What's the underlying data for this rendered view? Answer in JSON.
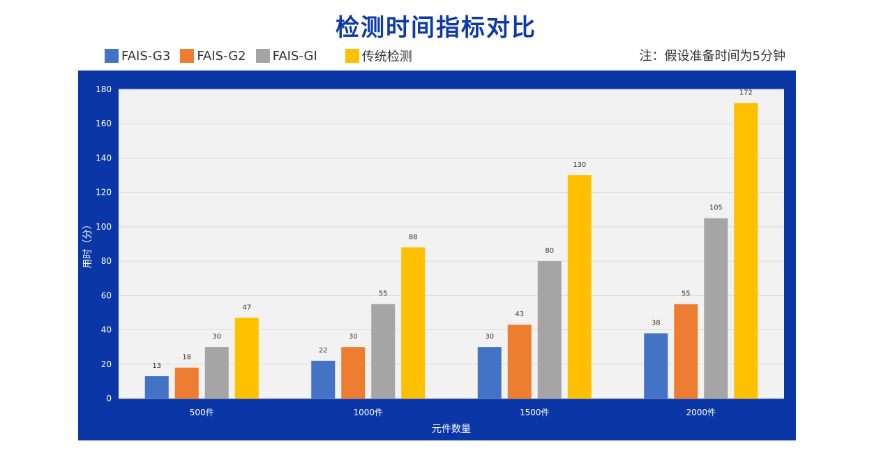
{
  "chart_data": {
    "type": "bar",
    "title": "检测时间指标对比",
    "categories": [
      "500件",
      "1000件",
      "1500件",
      "2000件"
    ],
    "series": [
      {
        "name": "FAIS-G3",
        "color": "#4472c4",
        "values": [
          13,
          22,
          30,
          38
        ]
      },
      {
        "name": "FAIS-G2",
        "color": "#ed7d31",
        "values": [
          18,
          30,
          43,
          55
        ]
      },
      {
        "name": "FAIS-GI",
        "color": "#a5a5a5",
        "values": [
          30,
          55,
          80,
          105
        ]
      },
      {
        "name": "传统检测",
        "color": "#ffc000",
        "values": [
          47,
          88,
          130,
          172
        ]
      }
    ],
    "xlabel": "元件数量",
    "ylabel": "用时（分）",
    "ylim": [
      0,
      180
    ],
    "yticks": [
      0,
      20,
      40,
      60,
      80,
      100,
      120,
      140,
      160,
      180
    ],
    "grid": true,
    "legend_position": "top-left",
    "note": "注：假设准备时间为5分钟",
    "colors": {
      "title": "#0d3aa6",
      "panel_background": "#0b36a6",
      "plot_background": "#f2f2f2"
    }
  }
}
